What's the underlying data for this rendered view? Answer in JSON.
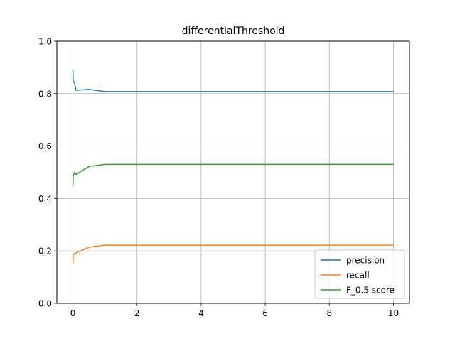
{
  "chart_data": {
    "type": "line",
    "title": "differentialThreshold",
    "xlabel": "",
    "ylabel": "",
    "xlim": [
      -0.5,
      10.5
    ],
    "ylim": [
      0.0,
      1.0
    ],
    "xticks": [
      0,
      2,
      4,
      6,
      8,
      10
    ],
    "xtick_labels": [
      "0",
      "2",
      "4",
      "6",
      "8",
      "10"
    ],
    "yticks": [
      0.0,
      0.2,
      0.4,
      0.6,
      0.8,
      1.0
    ],
    "ytick_labels": [
      "0.0",
      "0.2",
      "0.4",
      "0.6",
      "0.8",
      "1.0"
    ],
    "grid": true,
    "legend_position": "lower-right",
    "series": [
      {
        "name": "precision",
        "color": "#1f77b4",
        "x": [
          0,
          0.01,
          0.05,
          0.1,
          0.5,
          1,
          2,
          5,
          10
        ],
        "y": [
          0.892,
          0.845,
          0.842,
          0.813,
          0.816,
          0.808,
          0.808,
          0.808,
          0.808
        ]
      },
      {
        "name": "recall",
        "color": "#ff7f0e",
        "x": [
          0,
          0.01,
          0.05,
          0.1,
          0.5,
          1,
          2,
          5,
          10
        ],
        "y": [
          0.148,
          0.186,
          0.19,
          0.193,
          0.214,
          0.222,
          0.222,
          0.222,
          0.222
        ]
      },
      {
        "name": "F_0.5 score",
        "color": "#2ca02c",
        "x": [
          0,
          0.01,
          0.05,
          0.1,
          0.5,
          1,
          2,
          5,
          10
        ],
        "y": [
          0.445,
          0.485,
          0.5,
          0.492,
          0.522,
          0.53,
          0.53,
          0.53,
          0.53
        ]
      }
    ]
  }
}
